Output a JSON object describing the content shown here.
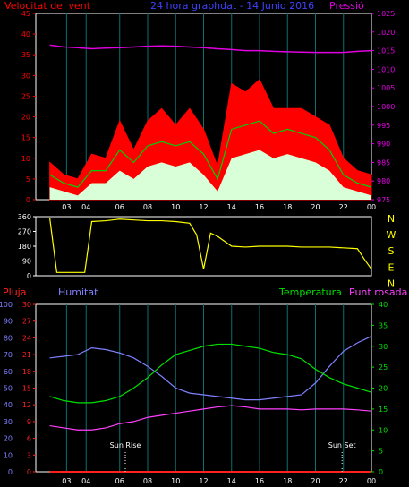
{
  "colors": {
    "wind": "#ff0000",
    "gust_fill": "#ff0000",
    "wind_avg": "#00d000",
    "wind_low_fill": "#d8ffd8",
    "pressure": "#e000e0",
    "title": "#4040ff",
    "direction": "#ffff00",
    "direction_labels": "#ffff00",
    "rain": "#ff2020",
    "humidity": "#8080ff",
    "temperature": "#00e000",
    "dewpoint": "#ff40ff",
    "axis": "#ffffff",
    "grid": "#0a7070"
  },
  "chart_data": [
    {
      "type": "line",
      "name_key": "wind_pressure",
      "title": "24 hora graphdat - 14 Junio 2016",
      "left_label": "Velocitat del vent",
      "right_label": "Pressió",
      "x_ticks": [
        "03",
        "04",
        "06",
        "08",
        "10",
        "12",
        "14",
        "16",
        "18",
        "20",
        "22",
        "00"
      ],
      "left_ylim": [
        0,
        45
      ],
      "left_ticks": [
        "0",
        "5",
        "10",
        "15",
        "20",
        "25",
        "30",
        "35",
        "40",
        "45"
      ],
      "right_ylim": [
        975,
        1025
      ],
      "right_ticks": [
        "975",
        "980",
        "985",
        "990",
        "995",
        "1000",
        "1005",
        "1010",
        "1015",
        "1020",
        "1025"
      ],
      "x_hours": [
        1.0,
        2.0,
        3.0,
        4.0,
        5.0,
        6.0,
        7.0,
        8.0,
        9.0,
        10.0,
        11.0,
        12.0,
        13.0,
        14.0,
        15.0,
        16.0,
        17.0,
        18.0,
        19.0,
        20.0,
        21.0,
        22.0,
        23.0,
        24.0
      ],
      "gust_max": [
        9,
        6,
        5,
        11,
        10,
        19,
        12,
        19,
        22,
        18,
        22,
        17,
        8,
        28,
        26,
        29,
        22,
        22,
        22,
        20,
        18,
        10,
        7,
        6
      ],
      "wind_avg": [
        6,
        4,
        3,
        7,
        7,
        12,
        9,
        13,
        14,
        13,
        14,
        11,
        5,
        17,
        18,
        19,
        16,
        17,
        16,
        15,
        12,
        6,
        4,
        3
      ],
      "wind_low": [
        3,
        2,
        1,
        4,
        4,
        7,
        5,
        8,
        9,
        8,
        9,
        6,
        2,
        10,
        11,
        12,
        10,
        11,
        10,
        9,
        7,
        3,
        2,
        1
      ],
      "pressure": [
        1016.5,
        1016.0,
        1015.8,
        1015.5,
        1015.7,
        1015.8,
        1016.0,
        1016.2,
        1016.3,
        1016.2,
        1016.0,
        1015.8,
        1015.5,
        1015.3,
        1015.0,
        1015.0,
        1014.8,
        1014.7,
        1014.6,
        1014.5,
        1014.5,
        1014.5,
        1014.8,
        1015.0
      ]
    },
    {
      "type": "line",
      "name_key": "wind_direction",
      "x_ticks": [
        "03",
        "04",
        "06",
        "08",
        "10",
        "12",
        "14",
        "16",
        "18",
        "20",
        "22",
        "00"
      ],
      "left_ylim": [
        0,
        360
      ],
      "left_ticks": [
        "0",
        "90",
        "180",
        "270",
        "360"
      ],
      "right_labels": [
        "N",
        "W",
        "S",
        "E",
        "N"
      ],
      "x_hours": [
        1.0,
        1.5,
        2.0,
        3.0,
        3.5,
        4.0,
        5.0,
        6.0,
        7.0,
        8.0,
        9.0,
        10.0,
        11.0,
        11.5,
        12.0,
        12.5,
        13.0,
        14.0,
        15.0,
        16.0,
        17.0,
        18.0,
        19.0,
        20.0,
        21.0,
        22.0,
        23.0,
        23.5,
        24.0
      ],
      "direction": [
        350,
        20,
        20,
        20,
        20,
        330,
        335,
        345,
        340,
        335,
        335,
        330,
        320,
        250,
        40,
        260,
        240,
        180,
        175,
        180,
        180,
        180,
        175,
        175,
        175,
        170,
        165,
        100,
        40
      ]
    },
    {
      "type": "line",
      "name_key": "climate",
      "left_label": "Pluja",
      "humidity_label": "Humitat",
      "temperature_label": "Temperatura",
      "dewpoint_label": "Punt rosada",
      "sunrise_label": "Sun Rise",
      "sunset_label": "Sun Set",
      "sunrise_hour": 6.4,
      "sunset_hour": 21.9,
      "x_ticks": [
        "03",
        "04",
        "06",
        "08",
        "10",
        "12",
        "14",
        "16",
        "18",
        "20",
        "22",
        "00"
      ],
      "humidity_ylim": [
        0,
        100
      ],
      "humidity_ticks": [
        "0",
        "10",
        "20",
        "30",
        "40",
        "50",
        "60",
        "70",
        "80",
        "90",
        "100"
      ],
      "rain_ylim": [
        0,
        30
      ],
      "rain_ticks": [
        "0",
        "3",
        "6",
        "9",
        "12",
        "15",
        "18",
        "21",
        "24",
        "27",
        "30"
      ],
      "temp_ylim": [
        0,
        40
      ],
      "temp_ticks": [
        "0",
        "5",
        "10",
        "15",
        "20",
        "25",
        "30",
        "35",
        "40"
      ],
      "x_hours": [
        1.0,
        2.0,
        3.0,
        4.0,
        5.0,
        6.0,
        7.0,
        8.0,
        9.0,
        10.0,
        11.0,
        12.0,
        13.0,
        14.0,
        15.0,
        16.0,
        17.0,
        18.0,
        19.0,
        20.0,
        21.0,
        22.0,
        23.0,
        24.0
      ],
      "humidity": [
        68,
        69,
        70,
        74,
        73,
        71,
        68,
        63,
        57,
        50,
        47,
        46,
        45,
        44,
        43,
        43,
        44,
        45,
        46,
        53,
        63,
        72,
        77,
        81
      ],
      "temperature": [
        18,
        17,
        16.5,
        16.5,
        17,
        18,
        20,
        22.5,
        25.5,
        28,
        29,
        30,
        30.5,
        30.5,
        30,
        29.5,
        28.5,
        28,
        27,
        24.5,
        22.5,
        21,
        20,
        19
      ],
      "dewpoint": [
        11,
        10.5,
        10,
        10,
        10.5,
        11.5,
        12,
        13,
        13.5,
        14,
        14.5,
        15,
        15.5,
        15.8,
        15.5,
        15,
        15,
        15,
        14.8,
        15,
        15,
        15,
        14.8,
        14.5
      ],
      "rain": [
        0,
        0,
        0,
        0,
        0,
        0,
        0,
        0,
        0,
        0,
        0,
        0,
        0,
        0,
        0,
        0,
        0,
        0,
        0,
        0,
        0,
        0,
        0,
        0
      ]
    }
  ]
}
